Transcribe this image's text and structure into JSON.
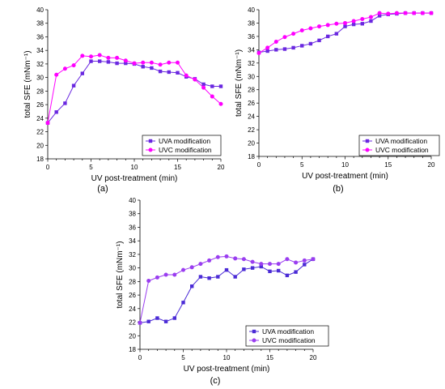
{
  "chart_data": [
    {
      "type": "line",
      "panel_label": "(a)",
      "xlabel": "UV post-treatment (min)",
      "ylabel": "total SFE (mNm⁻¹)",
      "xlim": [
        0,
        20
      ],
      "ylim": [
        18,
        40
      ],
      "xticks": [
        0,
        5,
        10,
        15,
        20
      ],
      "yticks": [
        18,
        20,
        22,
        24,
        26,
        28,
        30,
        32,
        34,
        36,
        38,
        40
      ],
      "legend_position": "bottom-right",
      "series": [
        {
          "name": "UVA modification",
          "color": "#6a28e0",
          "marker": "square",
          "x": [
            0,
            1,
            2,
            3,
            4,
            5,
            6,
            7,
            8,
            9,
            10,
            11,
            12,
            13,
            14,
            15,
            16,
            17,
            18,
            19,
            20
          ],
          "y": [
            23.3,
            24.9,
            26.2,
            28.8,
            30.6,
            32.4,
            32.4,
            32.3,
            32.1,
            32.1,
            32.0,
            31.6,
            31.4,
            30.9,
            30.8,
            30.7,
            30.1,
            29.8,
            29.0,
            28.7,
            28.7
          ]
        },
        {
          "name": "UVC modification",
          "color": "#ff00ff",
          "marker": "circle",
          "x": [
            0,
            1,
            2,
            3,
            4,
            5,
            6,
            7,
            8,
            9,
            10,
            11,
            12,
            13,
            14,
            15,
            16,
            17,
            18,
            19,
            20
          ],
          "y": [
            23.3,
            30.4,
            31.3,
            31.8,
            33.2,
            33.1,
            33.3,
            32.9,
            32.9,
            32.5,
            32.1,
            32.2,
            32.2,
            31.9,
            32.2,
            32.2,
            30.3,
            29.7,
            28.5,
            27.2,
            26.1
          ]
        }
      ]
    },
    {
      "type": "line",
      "panel_label": "(b)",
      "xlabel": "UV post-treatment (min)",
      "ylabel": "total SFE (mNm⁻¹)",
      "xlim": [
        0,
        20
      ],
      "ylim": [
        18,
        40
      ],
      "xticks": [
        0,
        5,
        10,
        15,
        20
      ],
      "yticks": [
        18,
        20,
        22,
        24,
        26,
        28,
        30,
        32,
        34,
        36,
        38,
        40
      ],
      "legend_position": "bottom-right",
      "series": [
        {
          "name": "UVA modification",
          "color": "#6a28e0",
          "marker": "square",
          "x": [
            0,
            1,
            2,
            3,
            4,
            5,
            6,
            7,
            8,
            9,
            10,
            11,
            12,
            13,
            14,
            15,
            16,
            17,
            18,
            19,
            20
          ],
          "y": [
            33.6,
            33.8,
            34.0,
            34.1,
            34.3,
            34.6,
            34.9,
            35.4,
            36.0,
            36.4,
            37.5,
            37.8,
            37.9,
            38.3,
            39.1,
            39.3,
            39.4,
            39.5,
            39.5,
            39.5,
            39.5
          ]
        },
        {
          "name": "UVC modification",
          "color": "#ff00ff",
          "marker": "circle",
          "x": [
            0,
            1,
            2,
            3,
            4,
            5,
            6,
            7,
            8,
            9,
            10,
            11,
            12,
            13,
            14,
            15,
            16,
            17,
            18,
            19,
            20
          ],
          "y": [
            33.5,
            34.3,
            35.2,
            35.9,
            36.4,
            36.9,
            37.2,
            37.5,
            37.7,
            37.9,
            38.0,
            38.3,
            38.6,
            38.9,
            39.5,
            39.4,
            39.5,
            39.5,
            39.5,
            39.5,
            39.5
          ]
        }
      ]
    },
    {
      "type": "line",
      "panel_label": "(c)",
      "xlabel": "UV post-treatment (min)",
      "ylabel": "total SFE (mNm⁻¹)",
      "xlim": [
        0,
        20
      ],
      "ylim": [
        18,
        40
      ],
      "xticks": [
        0,
        5,
        10,
        15,
        20
      ],
      "yticks": [
        18,
        20,
        22,
        24,
        26,
        28,
        30,
        32,
        34,
        36,
        38,
        40
      ],
      "legend_position": "bottom-right",
      "series": [
        {
          "name": "UVA modification",
          "color": "#4b2bd6",
          "marker": "square",
          "x": [
            0,
            1,
            2,
            3,
            4,
            5,
            6,
            7,
            8,
            9,
            10,
            11,
            12,
            13,
            14,
            15,
            16,
            17,
            18,
            19,
            20
          ],
          "y": [
            21.9,
            22.1,
            22.6,
            22.1,
            22.6,
            24.9,
            27.3,
            28.7,
            28.5,
            28.7,
            29.7,
            28.7,
            29.8,
            30.0,
            30.2,
            29.5,
            29.6,
            28.9,
            29.4,
            30.5,
            31.3
          ]
        },
        {
          "name": "UVC modification",
          "color": "#9a3df0",
          "marker": "circle",
          "x": [
            0,
            1,
            2,
            3,
            4,
            5,
            6,
            7,
            8,
            9,
            10,
            11,
            12,
            13,
            14,
            15,
            16,
            17,
            18,
            19,
            20
          ],
          "y": [
            21.9,
            28.1,
            28.6,
            29.0,
            29.0,
            29.7,
            30.1,
            30.6,
            31.1,
            31.6,
            31.7,
            31.4,
            31.3,
            30.9,
            30.6,
            30.6,
            30.6,
            31.3,
            30.8,
            31.1,
            31.3
          ]
        }
      ]
    }
  ]
}
